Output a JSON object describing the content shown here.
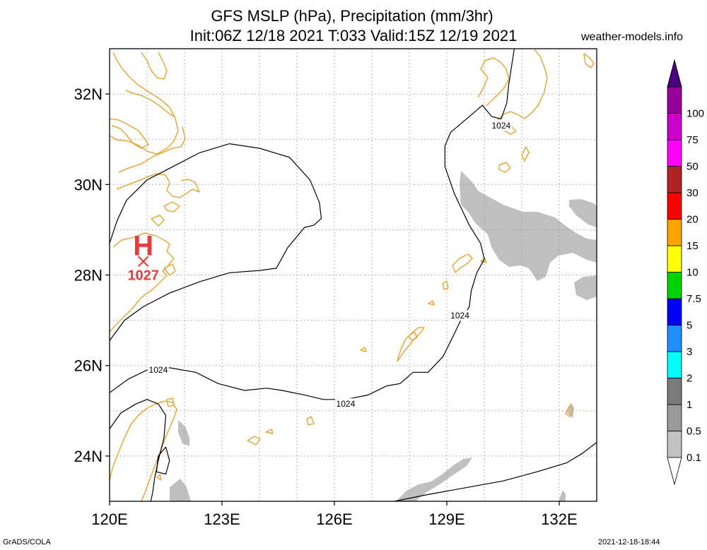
{
  "title": {
    "line1": "GFS MSLP (hPa), Precipitation (mm/3hr)",
    "line2": "Init:06Z 12/18 2021 T:033 Valid:15Z 12/19 2021"
  },
  "site": "weather-models.info",
  "footer": {
    "left": "GrADS/COLA",
    "right": "2021-12-18-18:44"
  },
  "map": {
    "lon_range": [
      120,
      133.0
    ],
    "lat_range": [
      23.0,
      33.0
    ],
    "lon_ticks": [
      {
        "value": 120,
        "label": "120E"
      },
      {
        "value": 123,
        "label": "123E"
      },
      {
        "value": 126,
        "label": "126E"
      },
      {
        "value": 129,
        "label": "129E"
      },
      {
        "value": 132,
        "label": "132E"
      }
    ],
    "lat_ticks": [
      {
        "value": 24,
        "label": "24N"
      },
      {
        "value": 26,
        "label": "26N"
      },
      {
        "value": 28,
        "label": "28N"
      },
      {
        "value": 30,
        "label": "30N"
      },
      {
        "value": 32,
        "label": "32N"
      }
    ],
    "grid": true,
    "grid_lons": [
      121,
      122,
      123,
      124,
      125,
      126,
      127,
      128,
      129,
      130,
      131,
      132
    ],
    "grid_lats": [
      24,
      25,
      26,
      27,
      28,
      29,
      30,
      31,
      32
    ],
    "high_center": {
      "symbol": "H",
      "value": "1027",
      "lon": 120.9,
      "lat": 28.3,
      "color": "#e83c3c"
    },
    "isobar_labels": [
      {
        "text": "1024",
        "lon": 130.45,
        "lat": 31.3
      },
      {
        "text": "1024",
        "lon": 129.35,
        "lat": 27.1
      },
      {
        "text": "1024",
        "lon": 121.3,
        "lat": 25.9
      },
      {
        "text": "1024",
        "lon": 126.3,
        "lat": 25.15
      }
    ],
    "isobars": [
      [
        [
          130.8,
          33.0
        ],
        [
          130.65,
          32.2
        ],
        [
          130.6,
          31.8
        ],
        [
          130.45,
          31.45
        ],
        [
          130.2,
          31.5
        ],
        [
          129.95,
          31.75
        ],
        [
          129.6,
          31.5
        ],
        [
          129.1,
          31.15
        ],
        [
          128.95,
          30.85
        ],
        [
          128.95,
          30.4
        ],
        [
          129.2,
          29.8
        ],
        [
          129.6,
          29.1
        ],
        [
          129.9,
          28.7
        ],
        [
          130.0,
          28.35
        ],
        [
          129.8,
          28.05
        ],
        [
          129.65,
          27.65
        ],
        [
          129.6,
          27.3
        ],
        [
          129.4,
          27.05
        ],
        [
          129.2,
          26.7
        ],
        [
          128.9,
          26.2
        ],
        [
          128.5,
          25.85
        ],
        [
          128.1,
          25.85
        ],
        [
          127.75,
          25.6
        ],
        [
          127.4,
          25.55
        ],
        [
          126.9,
          25.35
        ],
        [
          126.3,
          25.25
        ],
        [
          125.7,
          25.25
        ],
        [
          125.2,
          25.35
        ],
        [
          124.6,
          25.45
        ],
        [
          124.2,
          25.5
        ],
        [
          123.6,
          25.45
        ],
        [
          122.9,
          25.6
        ],
        [
          122.3,
          25.85
        ],
        [
          121.6,
          25.95
        ],
        [
          121.0,
          25.9
        ],
        [
          120.5,
          25.7
        ],
        [
          120.0,
          25.4
        ]
      ],
      [
        [
          120.0,
          26.55
        ],
        [
          120.4,
          27.0
        ],
        [
          120.9,
          27.3
        ],
        [
          121.6,
          27.6
        ],
        [
          122.4,
          27.85
        ],
        [
          123.2,
          28.05
        ],
        [
          124.0,
          28.1
        ],
        [
          124.45,
          28.15
        ],
        [
          124.75,
          28.6
        ],
        [
          125.0,
          28.85
        ],
        [
          125.2,
          29.05
        ],
        [
          125.45,
          29.1
        ],
        [
          125.65,
          29.25
        ],
        [
          125.6,
          29.6
        ],
        [
          125.35,
          30.1
        ],
        [
          124.8,
          30.6
        ],
        [
          124.0,
          30.8
        ],
        [
          123.2,
          30.9
        ],
        [
          122.4,
          30.7
        ],
        [
          121.7,
          30.4
        ],
        [
          121.0,
          30.1
        ],
        [
          120.45,
          29.65
        ],
        [
          120.2,
          29.2
        ],
        [
          120.0,
          28.7
        ]
      ],
      [
        [
          120.0,
          24.6
        ],
        [
          120.3,
          24.95
        ],
        [
          120.7,
          25.15
        ],
        [
          121.0,
          25.25
        ],
        [
          121.3,
          25.15
        ],
        [
          121.5,
          24.9
        ],
        [
          121.45,
          24.4
        ],
        [
          121.3,
          23.9
        ],
        [
          121.2,
          23.5
        ],
        [
          121.15,
          23.2
        ],
        [
          121.1,
          23.0
        ]
      ],
      [
        [
          121.5,
          24.2
        ],
        [
          121.6,
          23.9
        ],
        [
          121.5,
          23.6
        ],
        [
          121.25,
          23.65
        ],
        [
          121.3,
          24.0
        ],
        [
          121.5,
          24.2
        ]
      ],
      [
        [
          127.6,
          23.0
        ],
        [
          128.5,
          23.15
        ],
        [
          129.5,
          23.3
        ],
        [
          130.5,
          23.45
        ],
        [
          131.4,
          23.65
        ],
        [
          132.2,
          23.85
        ],
        [
          132.6,
          24.05
        ],
        [
          133.0,
          24.3
        ]
      ]
    ]
  }
}
